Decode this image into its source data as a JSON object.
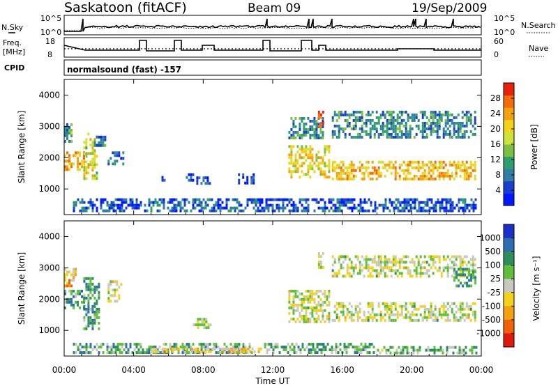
{
  "header": {
    "station": "Saskatoon (fitACF)",
    "beam": "Beam 09",
    "date": "19/Sep/2009"
  },
  "panels": {
    "nsky": {
      "label": "N.Sky",
      "tick_hi": "10^5",
      "tick_lo": "10^0",
      "right_hi": "10^5",
      "right_lo": "10^0",
      "right_label": "N.Search"
    },
    "freq": {
      "label_line1": "Freq.",
      "label_line2": "[MHz]",
      "tick_hi": "18",
      "tick_lo": "8",
      "right_hi": "60",
      "right_lo": "0",
      "right_label": "Nave"
    },
    "cpid": {
      "label": "CPID",
      "program": "normalsound (fast) -157"
    }
  },
  "chart_data": [
    {
      "type": "heatmap",
      "name": "power",
      "xlabel": "Time UT",
      "ylabel": "Slant Range [km]",
      "xlim": [
        0,
        24
      ],
      "ylim": [
        180,
        4500
      ],
      "x_ticks": [
        "00:00",
        "04:00",
        "08:00",
        "12:00",
        "16:00",
        "20:00",
        "00:00"
      ],
      "y_ticks": [
        1000,
        2000,
        3000,
        4000
      ],
      "colorbar": {
        "label": "Power [dB]",
        "ticks": [
          "4",
          "8",
          "12",
          "16",
          "20",
          "24",
          "28"
        ],
        "colors": [
          "#0018ff",
          "#1a3fd0",
          "#2f7ea8",
          "#2f9e6e",
          "#7bc043",
          "#cde23a",
          "#f4d21a",
          "#f5a10f",
          "#f56a0a",
          "#e8220a"
        ]
      },
      "regions": [
        {
          "t": [
            0.0,
            1.3
          ],
          "r": [
            1500,
            2200
          ],
          "level": 0.72
        },
        {
          "t": [
            0.0,
            0.6
          ],
          "r": [
            2400,
            3100
          ],
          "level": 0.35
        },
        {
          "t": [
            1.1,
            2.0
          ],
          "r": [
            1200,
            2800
          ],
          "level": 0.55
        },
        {
          "t": [
            1.7,
            2.5
          ],
          "r": [
            2300,
            2700
          ],
          "level": 0.25
        },
        {
          "t": [
            2.5,
            3.5
          ],
          "r": [
            1700,
            2200
          ],
          "level": 0.22
        },
        {
          "t": [
            5.6,
            5.9
          ],
          "r": [
            1200,
            1500
          ],
          "level": 0.15
        },
        {
          "t": [
            7.0,
            7.6
          ],
          "r": [
            1200,
            1500
          ],
          "level": 0.1
        },
        {
          "t": [
            7.6,
            8.5
          ],
          "r": [
            1100,
            1400
          ],
          "level": 0.12
        },
        {
          "t": [
            10.0,
            11.0
          ],
          "r": [
            1100,
            1500
          ],
          "level": 0.12
        },
        {
          "t": [
            12.9,
            15.4
          ],
          "r": [
            1300,
            2400
          ],
          "level": 0.6
        },
        {
          "t": [
            12.9,
            15.0
          ],
          "r": [
            2500,
            3300
          ],
          "level": 0.3
        },
        {
          "t": [
            14.6,
            15.0
          ],
          "r": [
            2900,
            3500
          ],
          "level": 0.9
        },
        {
          "t": [
            15.4,
            23.8
          ],
          "r": [
            1200,
            1900
          ],
          "level": 0.68
        },
        {
          "t": [
            15.4,
            23.8
          ],
          "r": [
            2600,
            3500
          ],
          "level": 0.3
        },
        {
          "t": [
            0.5,
            23.8
          ],
          "r": [
            200,
            700
          ],
          "level": 0.18
        }
      ]
    },
    {
      "type": "heatmap",
      "name": "velocity",
      "xlabel": "Time UT",
      "ylabel": "Slant Range [km]",
      "xlim": [
        0,
        24
      ],
      "ylim": [
        180,
        4500
      ],
      "x_ticks": [
        "00:00",
        "04:00",
        "08:00",
        "12:00",
        "16:00",
        "20:00",
        "00:00"
      ],
      "y_ticks": [
        1000,
        2000,
        3000,
        4000
      ],
      "colorbar": {
        "label": "Velocity [m s⁻¹]",
        "ticks": [
          "1000",
          "500",
          "100",
          "25",
          "-25",
          "-100",
          "-500",
          "-1000"
        ],
        "colors": [
          "#1b30c8",
          "#2d6eb3",
          "#2f8f5c",
          "#5fbf3a",
          "#c8c8c0",
          "#f2d21a",
          "#f5a10f",
          "#f2600a",
          "#e01a0a"
        ]
      },
      "regions": [
        {
          "t": [
            0.0,
            1.3
          ],
          "r": [
            1600,
            2300
          ],
          "level": 0.3
        },
        {
          "t": [
            0.0,
            0.8
          ],
          "r": [
            2300,
            3000
          ],
          "level": 0.65
        },
        {
          "t": [
            1.1,
            2.1
          ],
          "r": [
            1000,
            2700
          ],
          "level": 0.3
        },
        {
          "t": [
            2.5,
            3.4
          ],
          "r": [
            1800,
            2600
          ],
          "level": 0.5
        },
        {
          "t": [
            7.4,
            8.6
          ],
          "r": [
            1000,
            1400
          ],
          "level": 0.5
        },
        {
          "t": [
            12.9,
            15.4
          ],
          "r": [
            1200,
            2300
          ],
          "level": 0.5
        },
        {
          "t": [
            14.6,
            15.0
          ],
          "r": [
            2900,
            3500
          ],
          "level": 0.5
        },
        {
          "t": [
            15.4,
            23.8
          ],
          "r": [
            1200,
            1900
          ],
          "level": 0.5
        },
        {
          "t": [
            15.4,
            23.8
          ],
          "r": [
            2600,
            3400
          ],
          "level": 0.5
        },
        {
          "t": [
            22.4,
            23.8
          ],
          "r": [
            2300,
            3000
          ],
          "level": 0.3
        },
        {
          "t": [
            0.5,
            11.0
          ],
          "r": [
            200,
            600
          ],
          "level": 0.34
        },
        {
          "t": [
            5.0,
            11.5
          ],
          "r": [
            200,
            450
          ],
          "level": 0.62
        },
        {
          "t": [
            11.5,
            18.0
          ],
          "r": [
            200,
            600
          ],
          "level": 0.36
        },
        {
          "t": [
            18.0,
            23.8
          ],
          "r": [
            200,
            500
          ],
          "level": 0.4
        }
      ]
    }
  ]
}
